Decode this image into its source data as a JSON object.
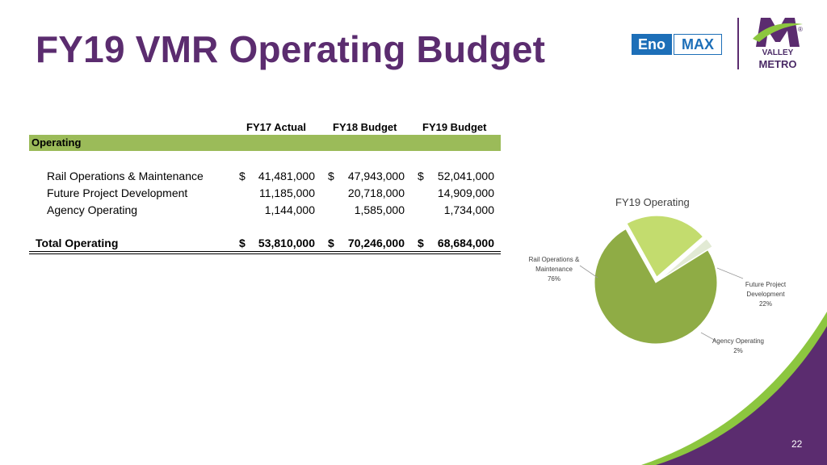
{
  "slide": {
    "title": "FY19 VMR Operating Budget",
    "page_number": "22"
  },
  "logos": {
    "eno_left": "Eno",
    "eno_right": "MAX",
    "vm_line1": "VALLEY",
    "vm_line2": "METRO",
    "vm_mark": "®"
  },
  "table": {
    "headers": [
      "FY17 Actual",
      "FY18 Budget",
      "FY19 Budget"
    ],
    "section": "Operating",
    "currency": "$",
    "rows": [
      {
        "label": "Rail Operations & Maintenance",
        "values": [
          "41,481,000",
          "47,943,000",
          "52,041,000"
        ],
        "currency": true
      },
      {
        "label": "Future Project Development",
        "values": [
          "11,185,000",
          "20,718,000",
          "14,909,000"
        ],
        "currency": false
      },
      {
        "label": "Agency Operating",
        "values": [
          "1,144,000",
          "1,585,000",
          "1,734,000"
        ],
        "currency": false
      }
    ],
    "total": {
      "label": "Total Operating",
      "values": [
        "53,810,000",
        "70,246,000",
        "68,684,000"
      ]
    }
  },
  "chart_data": {
    "type": "pie",
    "title": "FY19 Operating",
    "slices": [
      {
        "label_lines": [
          "Rail Operations &",
          "Maintenance"
        ],
        "label": "Rail Operations & Maintenance",
        "value": 52041000,
        "percent": "76%",
        "color": "#8fac45"
      },
      {
        "label_lines": [
          "Future Project",
          "Development"
        ],
        "label": "Future Project Development",
        "value": 14909000,
        "percent": "22%",
        "color": "#c3dc6e"
      },
      {
        "label_lines": [
          "Agency Operating"
        ],
        "label": "Agency Operating",
        "value": 1734000,
        "percent": "2%",
        "color": "#e2ead4"
      }
    ]
  },
  "colors": {
    "title": "#5b2c6f",
    "band": "#9bbb59",
    "accent_purple": "#5b2c6f",
    "accent_green": "#8cc63f"
  }
}
